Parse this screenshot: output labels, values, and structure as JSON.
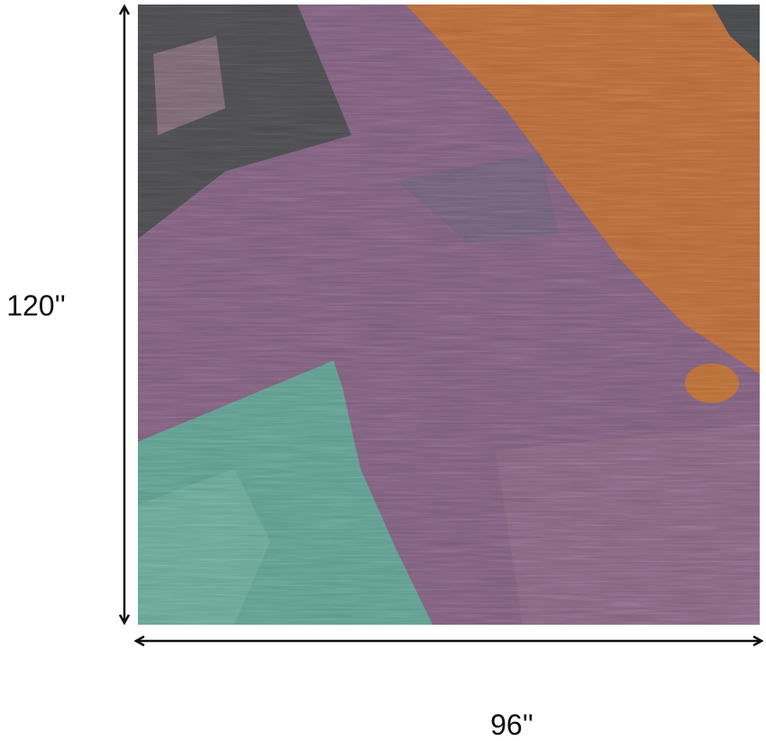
{
  "dimensions": {
    "height": "120''",
    "width": "96''"
  }
}
